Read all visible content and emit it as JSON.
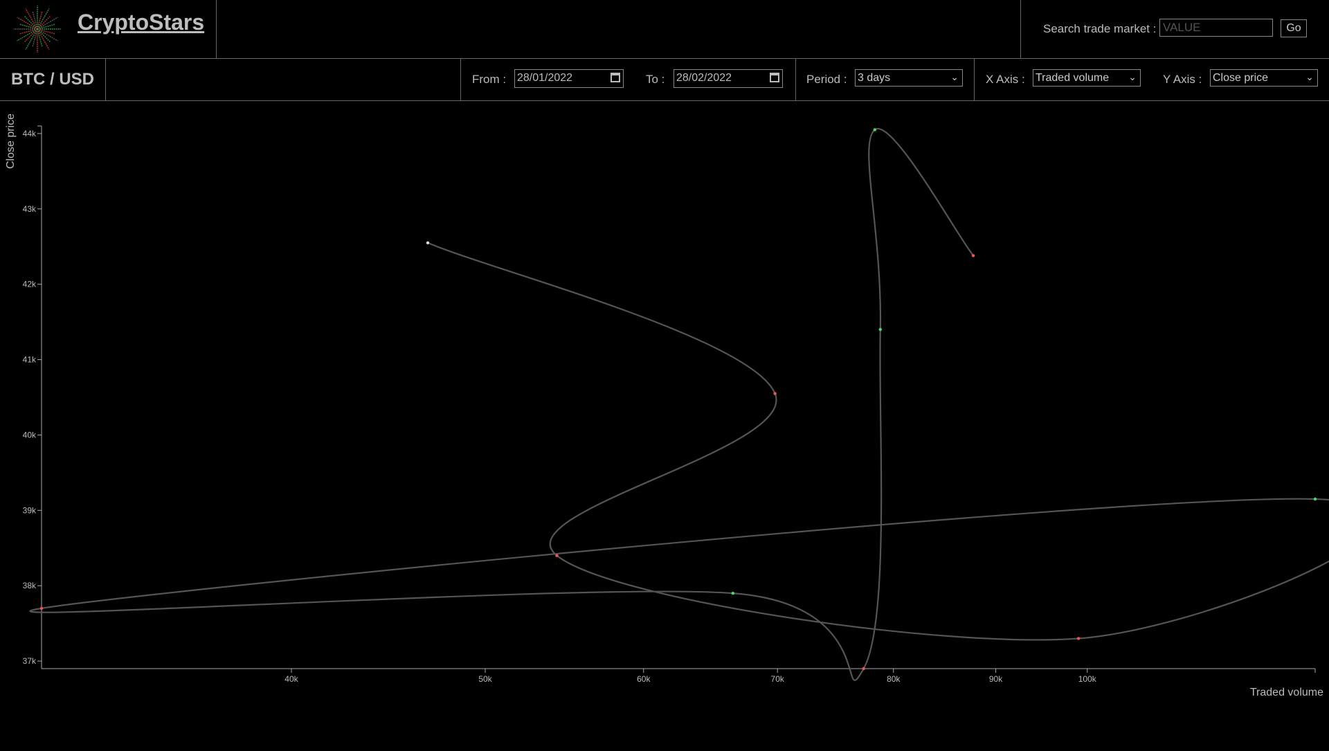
{
  "header": {
    "brand": "CryptoStars",
    "search_label": "Search trade market :",
    "search_placeholder": "VALUE",
    "go_label": "Go"
  },
  "toolbar": {
    "pair": "BTC / USD",
    "from_label": "From :",
    "from_value": "28/01/2022",
    "to_label": "To :",
    "to_value": "28/02/2022",
    "period_label": "Period :",
    "period_value": "3 days",
    "xaxis_label": "X Axis :",
    "xaxis_value": "Traded volume",
    "yaxis_label": "Y Axis :",
    "yaxis_value": "Close price"
  },
  "colors": {
    "background": "#000000",
    "line": "#555555",
    "up_point": "#44dd66",
    "down_point": "#ee5555",
    "neutral_point": "#dddddd"
  },
  "chart_data": {
    "type": "line",
    "xlabel": "Traded volume",
    "ylabel": "Close price",
    "xlim": [
      30000,
      130000
    ],
    "ylim": [
      36900,
      44100
    ],
    "x_scale": "log",
    "x_ticks": [
      {
        "value": 40000,
        "label": "40k"
      },
      {
        "value": 50000,
        "label": "50k"
      },
      {
        "value": 60000,
        "label": "60k"
      },
      {
        "value": 70000,
        "label": "70k"
      },
      {
        "value": 80000,
        "label": "80k"
      },
      {
        "value": 90000,
        "label": "90k"
      },
      {
        "value": 100000,
        "label": "100k"
      }
    ],
    "y_ticks": [
      {
        "value": 37000,
        "label": "37k"
      },
      {
        "value": 38000,
        "label": "38k"
      },
      {
        "value": 39000,
        "label": "39k"
      },
      {
        "value": 40000,
        "label": "40k"
      },
      {
        "value": 41000,
        "label": "41k"
      },
      {
        "value": 42000,
        "label": "42k"
      },
      {
        "value": 43000,
        "label": "43k"
      },
      {
        "value": 44000,
        "label": "44k"
      }
    ],
    "points": [
      {
        "x": 46800,
        "y": 42550,
        "trend": "neutral"
      },
      {
        "x": 69800,
        "y": 40550,
        "trend": "down"
      },
      {
        "x": 54300,
        "y": 38400,
        "trend": "down"
      },
      {
        "x": 99000,
        "y": 37300,
        "trend": "down"
      },
      {
        "x": 130000,
        "y": 39150,
        "trend": "up"
      },
      {
        "x": 30000,
        "y": 37700,
        "trend": "down"
      },
      {
        "x": 66500,
        "y": 37900,
        "trend": "up"
      },
      {
        "x": 77300,
        "y": 36900,
        "trend": "down"
      },
      {
        "x": 78800,
        "y": 41400,
        "trend": "up"
      },
      {
        "x": 78300,
        "y": 44050,
        "trend": "up"
      },
      {
        "x": 87700,
        "y": 42380,
        "trend": "down"
      }
    ]
  }
}
